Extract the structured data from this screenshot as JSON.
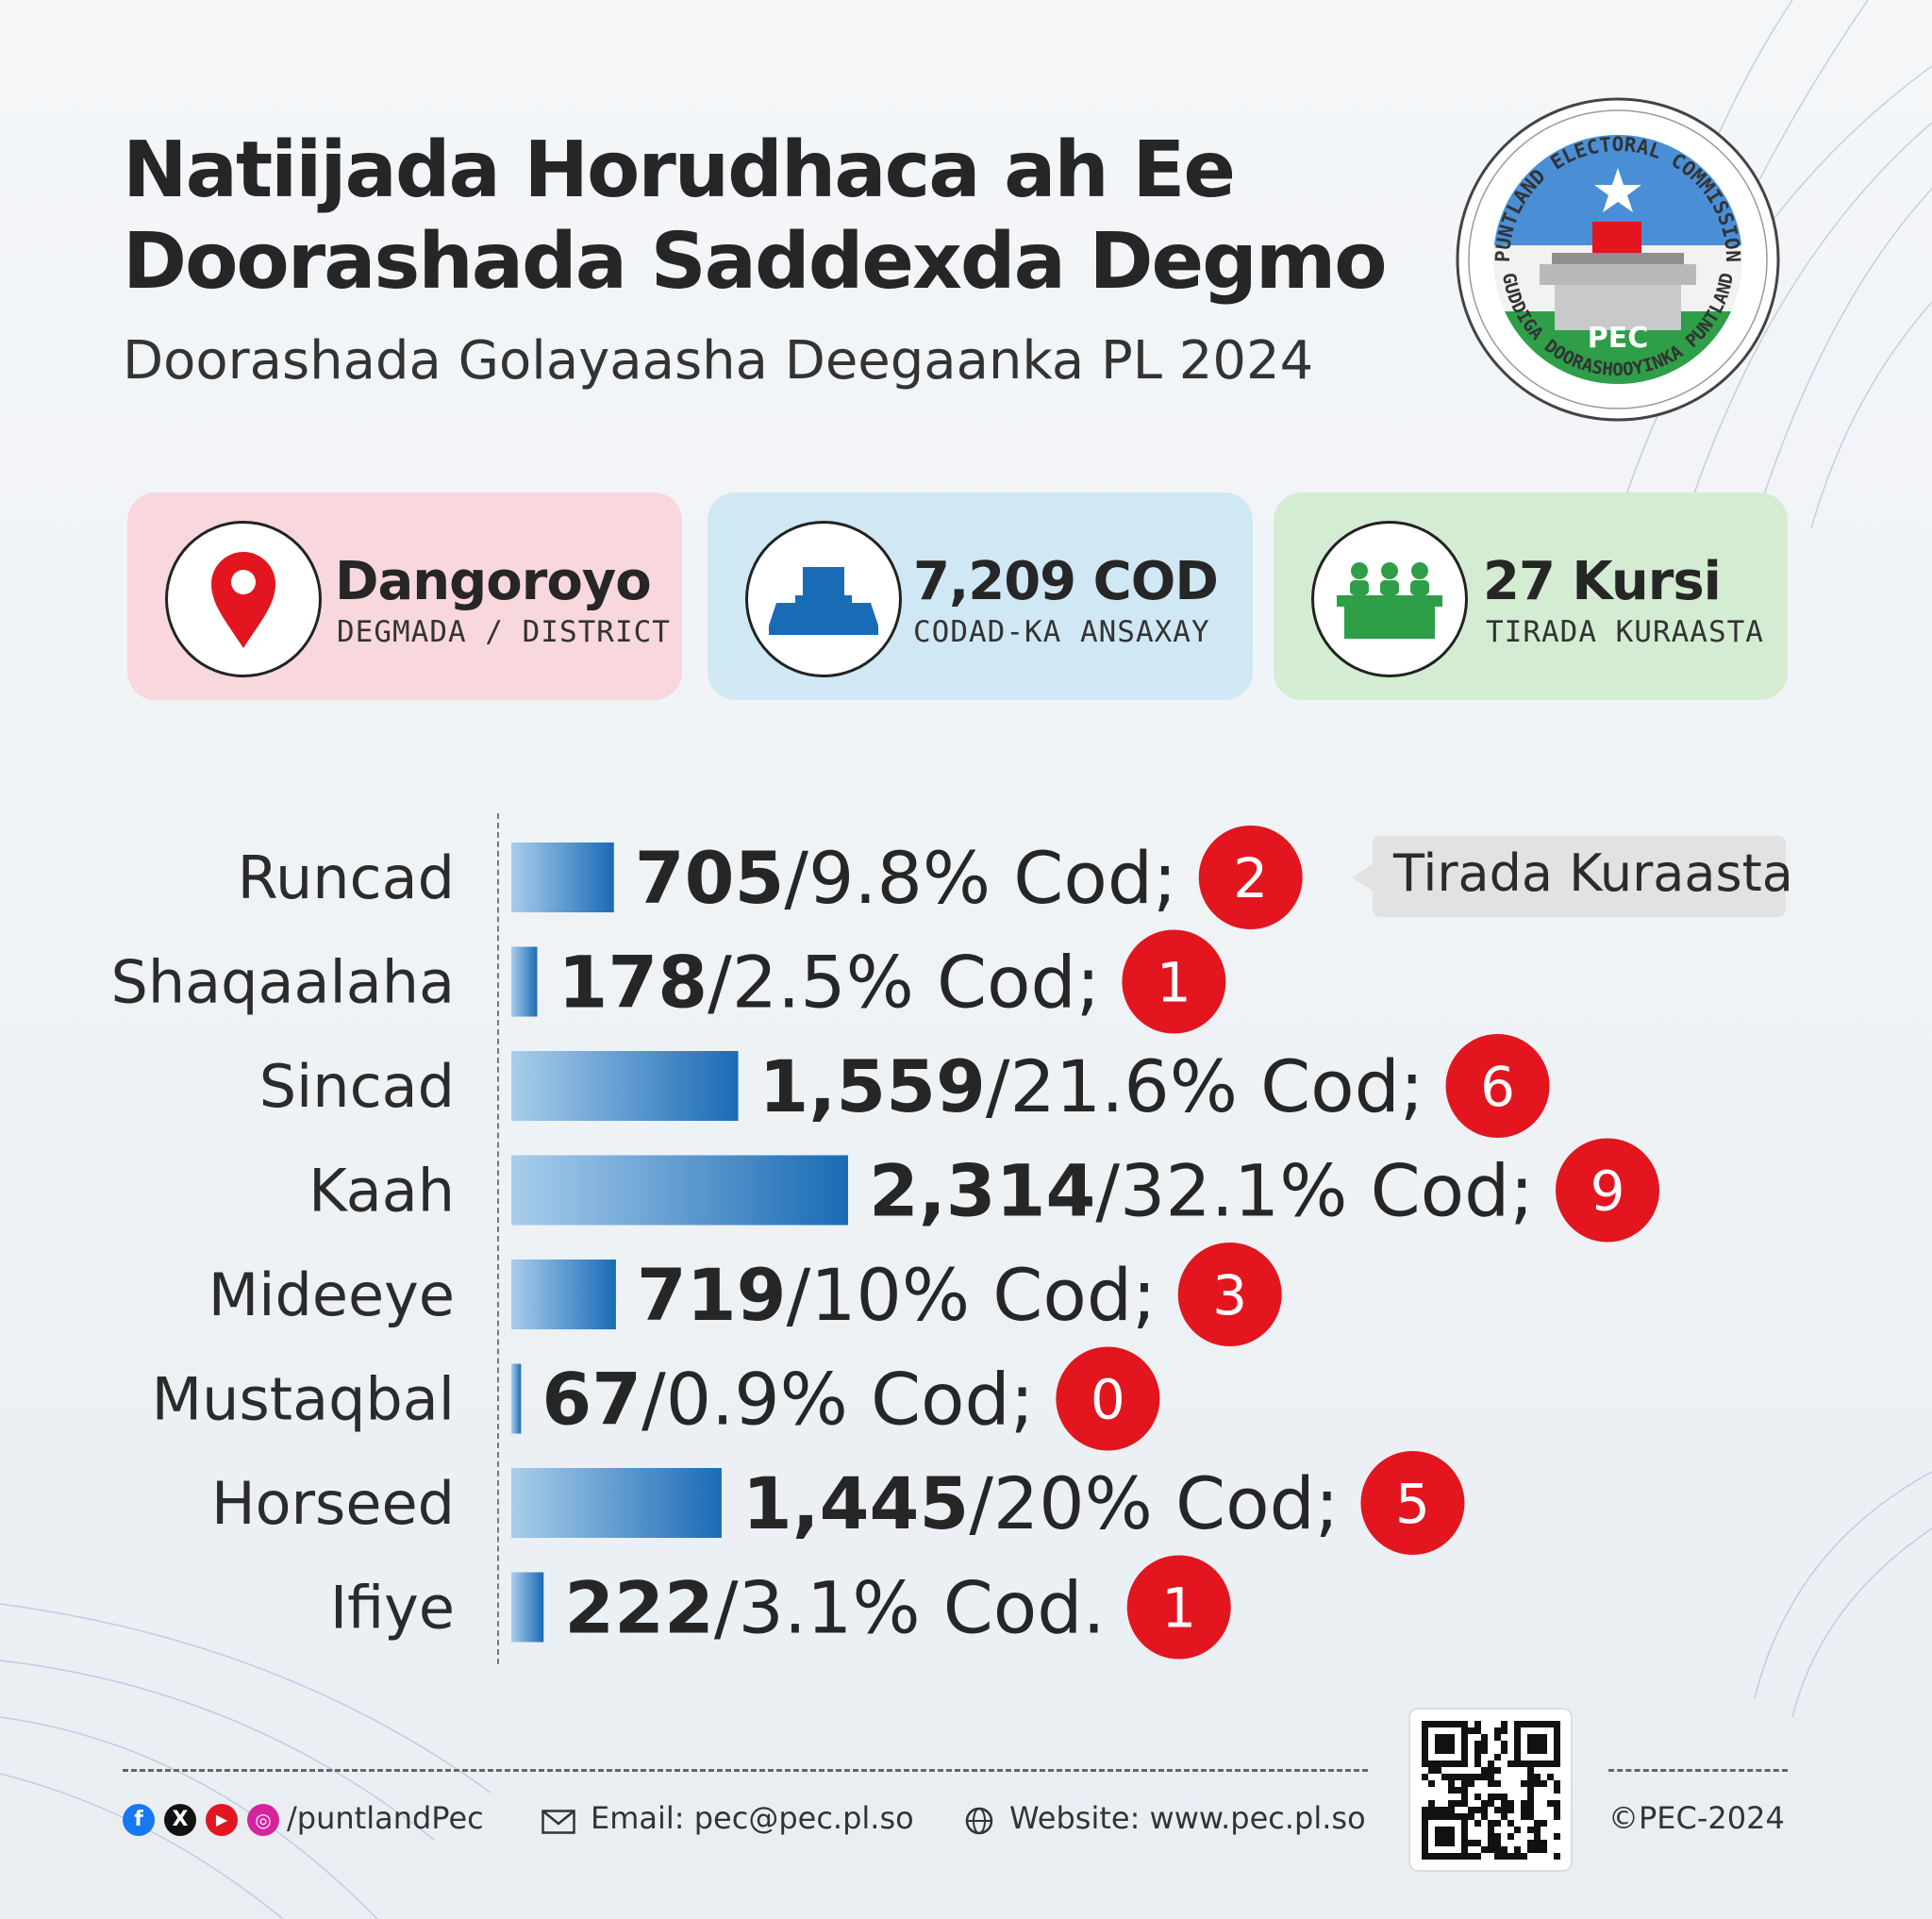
{
  "header": {
    "title": "Natiijada Horudhaca ah Ee Doorashada Saddexda Degmo",
    "subtitle": "Doorashada Golayaasha Deegaanka PL 2024"
  },
  "logo": {
    "top_text": "PUNTLAND ELECTORAL COMMISSION",
    "bottom_text": "GUDDIGA DOORASHOOYINKA PUNTLAND",
    "center_text": "PEC"
  },
  "cards": {
    "district": {
      "value": "Dangoroyo",
      "label": "DEGMADA / DISTRICT",
      "icon": "map-pin-icon"
    },
    "votes": {
      "value": "7,209 COD",
      "label": "CODAD-KA ANSAXAY",
      "icon": "ballot-box-icon"
    },
    "seats": {
      "value": "27 Kursi",
      "label": "TIRADA KURAASTA",
      "icon": "council-table-icon"
    }
  },
  "callout": "Tirada Kuraasta",
  "chart_data": {
    "type": "bar",
    "orientation": "horizontal",
    "categories": [
      "Runcad",
      "Shaqaalaha",
      "Sincad",
      "Kaah",
      "Mideeye",
      "Mustaqbal",
      "Horseed",
      "Ifiye"
    ],
    "values": [
      705,
      178,
      1559,
      2314,
      719,
      67,
      1445,
      222
    ],
    "value_labels": [
      "705",
      "178",
      "1,559",
      "2,314",
      "719",
      "67",
      "1,445",
      "222"
    ],
    "percent_labels": [
      "/9.8% Cod;",
      "/2.5% Cod;",
      "/21.6% Cod;",
      "/32.1% Cod;",
      "/10% Cod;",
      "/0.9% Cod;",
      "/20% Cod;",
      "/3.1% Cod."
    ],
    "seats": [
      2,
      1,
      6,
      9,
      3,
      0,
      5,
      1
    ],
    "colors": {
      "bar_start": "#a9cdec",
      "bar_end": "#1a6bb5",
      "seat_badge": "#e3151f"
    }
  },
  "footer": {
    "social": "/puntlandPec",
    "email": "Email: pec@pec.pl.so",
    "website": "Website: www.pec.pl.so",
    "copyright": "©PEC-2024",
    "icons": [
      "facebook-icon",
      "x-icon",
      "youtube-icon",
      "instagram-icon",
      "mail-icon",
      "globe-icon",
      "qr-code"
    ]
  }
}
